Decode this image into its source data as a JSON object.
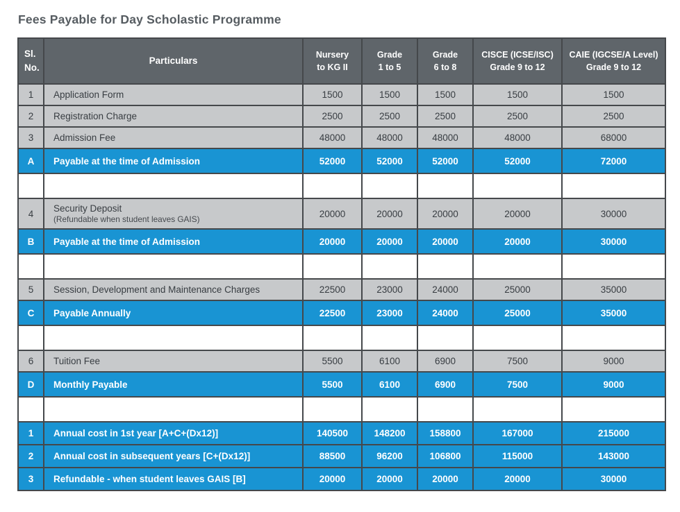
{
  "page": {
    "title": "Fees Payable for Day Scholastic Programme"
  },
  "colors": {
    "accent_blue": "#1994d3",
    "header_gray": "#5f656a",
    "row_gray": "#c7c9cb",
    "border": "#45484b",
    "title_text": "#565c61"
  },
  "table": {
    "header": {
      "sl_line1": "Sl.",
      "sl_line2": "No.",
      "particulars": "Particulars",
      "columns": [
        {
          "line1": "Nursery",
          "line2": "to KG II"
        },
        {
          "line1": "Grade",
          "line2": "1 to 5"
        },
        {
          "line1": "Grade",
          "line2": "6 to 8"
        },
        {
          "line1": "CISCE (ICSE/ISC)",
          "line2": "Grade 9 to 12"
        },
        {
          "line1": "CAIE (IGCSE/A Level)",
          "line2": "Grade 9 to 12"
        }
      ]
    },
    "rows": [
      {
        "type": "data",
        "sl": "1",
        "label": "Application Form",
        "values": [
          "1500",
          "1500",
          "1500",
          "1500",
          "1500"
        ]
      },
      {
        "type": "data",
        "sl": "2",
        "label": "Registration Charge",
        "values": [
          "2500",
          "2500",
          "2500",
          "2500",
          "2500"
        ]
      },
      {
        "type": "data",
        "sl": "3",
        "label": "Admission Fee",
        "values": [
          "48000",
          "48000",
          "48000",
          "48000",
          "68000"
        ]
      },
      {
        "type": "total",
        "sl": "A",
        "label": "Payable at the time of Admission",
        "values": [
          "52000",
          "52000",
          "52000",
          "52000",
          "72000"
        ]
      },
      {
        "type": "spacer"
      },
      {
        "type": "data",
        "sl": "4",
        "label": "Security Deposit",
        "sublabel": "(Refundable when student leaves GAIS)",
        "values": [
          "20000",
          "20000",
          "20000",
          "20000",
          "30000"
        ]
      },
      {
        "type": "total",
        "sl": "B",
        "label": "Payable at the time of Admission",
        "values": [
          "20000",
          "20000",
          "20000",
          "20000",
          "30000"
        ]
      },
      {
        "type": "spacer"
      },
      {
        "type": "data",
        "sl": "5",
        "label": "Session, Development and Maintenance Charges",
        "values": [
          "22500",
          "23000",
          "24000",
          "25000",
          "35000"
        ]
      },
      {
        "type": "total",
        "sl": "C",
        "label": "Payable Annually",
        "values": [
          "22500",
          "23000",
          "24000",
          "25000",
          "35000"
        ]
      },
      {
        "type": "spacer"
      },
      {
        "type": "data",
        "sl": "6",
        "label": "Tuition Fee",
        "values": [
          "5500",
          "6100",
          "6900",
          "7500",
          "9000"
        ]
      },
      {
        "type": "total",
        "sl": "D",
        "label": "Monthly Payable",
        "values": [
          "5500",
          "6100",
          "6900",
          "7500",
          "9000"
        ]
      },
      {
        "type": "spacer"
      },
      {
        "type": "summary",
        "sl": "1",
        "label": "Annual cost in 1st year [A+C+(Dx12)]",
        "values": [
          "140500",
          "148200",
          "158800",
          "167000",
          "215000"
        ]
      },
      {
        "type": "summary",
        "sl": "2",
        "label": "Annual cost in subsequent years [C+(Dx12)]",
        "values": [
          "88500",
          "96200",
          "106800",
          "115000",
          "143000"
        ]
      },
      {
        "type": "summary",
        "sl": "3",
        "label": "Refundable - when student leaves GAIS [B]",
        "values": [
          "20000",
          "20000",
          "20000",
          "20000",
          "30000"
        ]
      }
    ]
  }
}
